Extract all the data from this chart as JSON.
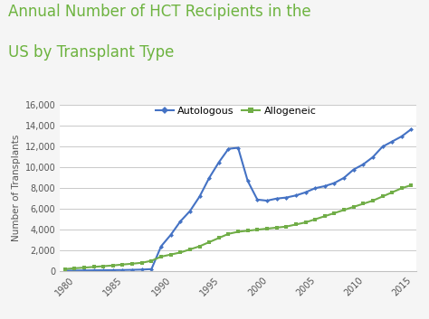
{
  "title_line1": "Annual Number of HCT Recipients in the",
  "title_line2": "US by Transplant Type",
  "title_color": "#6db33f",
  "ylabel": "Number of Transplants",
  "background_color": "#f5f5f5",
  "plot_bg_color": "#ffffff",
  "ylim": [
    0,
    16000
  ],
  "yticks": [
    0,
    2000,
    4000,
    6000,
    8000,
    10000,
    12000,
    14000,
    16000
  ],
  "xlim": [
    1979.5,
    2016.5
  ],
  "xticks": [
    1980,
    1985,
    1990,
    1995,
    2000,
    2005,
    2010,
    2015
  ],
  "autologous_color": "#4472c4",
  "allogeneic_color": "#70ad47",
  "autologous_label": "Autologous",
  "allogeneic_label": "Allogeneic",
  "autologous_years": [
    1980,
    1981,
    1982,
    1983,
    1984,
    1985,
    1986,
    1987,
    1988,
    1989,
    1990,
    1991,
    1992,
    1993,
    1994,
    1995,
    1996,
    1997,
    1998,
    1999,
    2000,
    2001,
    2002,
    2003,
    2004,
    2005,
    2006,
    2007,
    2008,
    2009,
    2010,
    2011,
    2012,
    2013,
    2014,
    2015,
    2016
  ],
  "autologous_values": [
    50,
    60,
    70,
    80,
    90,
    100,
    110,
    130,
    150,
    200,
    2400,
    3500,
    4800,
    5800,
    7200,
    9000,
    10500,
    11800,
    11900,
    8700,
    6900,
    6800,
    7000,
    7100,
    7300,
    7600,
    8000,
    8200,
    8500,
    9000,
    9800,
    10300,
    11000,
    12000,
    12500,
    13000,
    13700
  ],
  "allogeneic_years": [
    1980,
    1981,
    1982,
    1983,
    1984,
    1985,
    1986,
    1987,
    1988,
    1989,
    1990,
    1991,
    1992,
    1993,
    1994,
    1995,
    1996,
    1997,
    1998,
    1999,
    2000,
    2001,
    2002,
    2003,
    2004,
    2005,
    2006,
    2007,
    2008,
    2009,
    2010,
    2011,
    2012,
    2013,
    2014,
    2015,
    2016
  ],
  "allogeneic_values": [
    200,
    280,
    340,
    410,
    480,
    550,
    640,
    720,
    810,
    1000,
    1400,
    1600,
    1800,
    2100,
    2400,
    2800,
    3200,
    3600,
    3800,
    3900,
    4000,
    4100,
    4200,
    4300,
    4500,
    4700,
    5000,
    5300,
    5600,
    5900,
    6200,
    6500,
    6800,
    7200,
    7600,
    8000,
    8300
  ],
  "grid_color": "#c0c0c0",
  "spine_color": "#c0c0c0",
  "tick_color": "#555555",
  "tick_fontsize": 7,
  "ylabel_fontsize": 7.5,
  "legend_fontsize": 8,
  "title_fontsize1": 12,
  "title_fontsize2": 12
}
